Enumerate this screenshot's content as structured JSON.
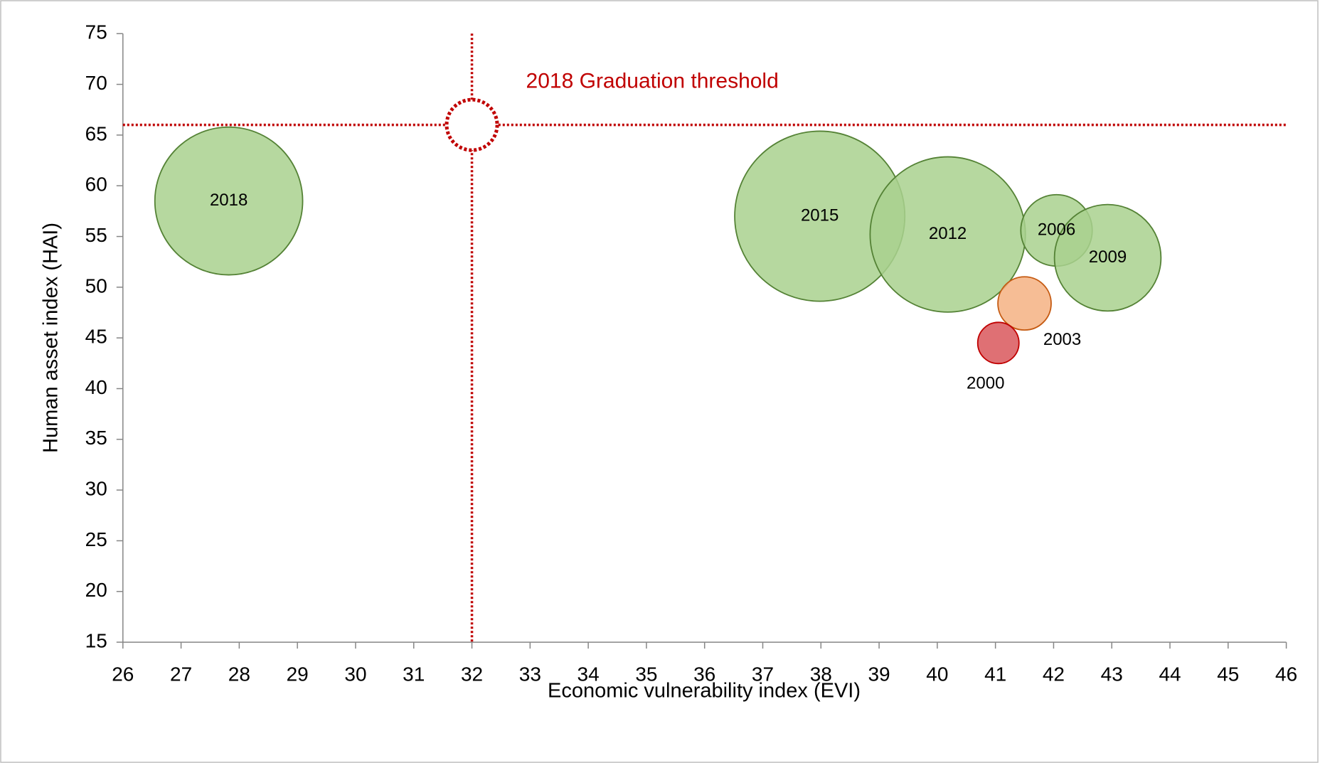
{
  "chart_data": {
    "type": "bubble",
    "x_label": "Economic vulnerability index (EVI)",
    "y_label": "Human asset index (HAI)",
    "labels": [
      "2018",
      "2015",
      "2012",
      "2006",
      "2009",
      "2003",
      "2000"
    ],
    "x": [
      27.82,
      37.98,
      40.18,
      42.05,
      42.93,
      41.5,
      41.05
    ],
    "values": [
      58.5,
      57.0,
      55.2,
      55.6,
      52.9,
      48.4,
      44.5
    ],
    "sizes": [
      77,
      102,
      85,
      18,
      40,
      10,
      6
    ],
    "colors": [
      "#a9d18e",
      "#a9d18e",
      "#a9d18e",
      "#a9d18e",
      "#a9d18e",
      "#f4b183",
      "#d9575c"
    ],
    "threshold": {
      "label": "2018 Graduation threshold",
      "x": 32,
      "y": 66,
      "size": 9,
      "color": "#c00000"
    },
    "xlim": [
      26,
      46
    ],
    "xticks": [
      26,
      27,
      28,
      29,
      30,
      31,
      32,
      33,
      34,
      35,
      36,
      37,
      38,
      39,
      40,
      41,
      42,
      43,
      44,
      45,
      46
    ],
    "ylim": [
      15,
      75
    ],
    "yticks": [
      15,
      20,
      25,
      30,
      35,
      40,
      45,
      50,
      55,
      60,
      65,
      70,
      75
    ]
  }
}
